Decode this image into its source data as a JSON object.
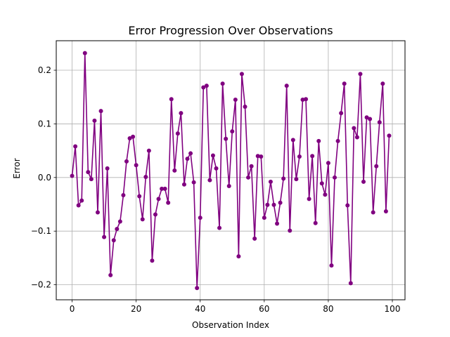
{
  "chart_data": {
    "type": "line",
    "title": "Error Progression Over Observations",
    "xlabel": "Observation Index",
    "ylabel": "Error",
    "xlim": [
      -4.95,
      103.95
    ],
    "ylim": [
      -0.228,
      0.255
    ],
    "x_ticks": [
      0,
      20,
      40,
      60,
      80,
      100
    ],
    "x_tick_labels": [
      "0",
      "20",
      "40",
      "60",
      "80",
      "100"
    ],
    "y_ticks": [
      -0.2,
      -0.1,
      0.0,
      0.1,
      0.2
    ],
    "y_tick_labels": [
      "−0.2",
      "−0.1",
      "0.0",
      "0.1",
      "0.2"
    ],
    "grid": true,
    "legend": "none",
    "series": [
      {
        "color": "#800080",
        "marker": "circle",
        "x": [
          0,
          1,
          2,
          3,
          4,
          5,
          6,
          7,
          8,
          9,
          10,
          11,
          12,
          13,
          14,
          15,
          16,
          17,
          18,
          19,
          20,
          21,
          22,
          23,
          24,
          25,
          26,
          27,
          28,
          29,
          30,
          31,
          32,
          33,
          34,
          35,
          36,
          37,
          38,
          39,
          40,
          41,
          42,
          43,
          44,
          45,
          46,
          47,
          48,
          49,
          50,
          51,
          52,
          53,
          54,
          55,
          56,
          57,
          58,
          59,
          60,
          61,
          62,
          63,
          64,
          65,
          66,
          67,
          68,
          69,
          70,
          71,
          72,
          73,
          74,
          75,
          76,
          77,
          78,
          79,
          80,
          81,
          82,
          83,
          84,
          85,
          86,
          87,
          88,
          89,
          90,
          91,
          92,
          93,
          94,
          95,
          96,
          97,
          98,
          99
        ],
        "values": [
          0.003,
          0.058,
          -0.052,
          -0.043,
          0.232,
          0.01,
          -0.003,
          0.106,
          -0.065,
          0.124,
          -0.111,
          0.017,
          -0.182,
          -0.117,
          -0.096,
          -0.082,
          -0.033,
          0.03,
          0.073,
          0.076,
          0.023,
          -0.035,
          -0.078,
          0.001,
          0.05,
          -0.155,
          -0.069,
          -0.04,
          -0.021,
          -0.021,
          -0.047,
          0.146,
          0.013,
          0.082,
          0.12,
          -0.013,
          0.035,
          0.045,
          -0.009,
          -0.206,
          -0.075,
          0.168,
          0.171,
          -0.005,
          0.041,
          0.017,
          -0.094,
          0.175,
          0.072,
          -0.016,
          0.086,
          0.145,
          -0.147,
          0.193,
          0.132,
          0.0,
          0.021,
          -0.114,
          0.04,
          0.039,
          -0.075,
          -0.051,
          -0.008,
          -0.051,
          -0.086,
          -0.047,
          -0.002,
          0.171,
          -0.099,
          0.07,
          -0.003,
          0.039,
          0.145,
          0.146,
          -0.04,
          0.04,
          -0.085,
          0.068,
          -0.011,
          -0.032,
          0.027,
          -0.164,
          0.0,
          0.068,
          0.12,
          0.175,
          -0.052,
          -0.197,
          0.092,
          0.075,
          0.193,
          -0.008,
          0.112,
          0.109,
          -0.065,
          0.021,
          0.103,
          0.175,
          -0.063,
          0.078
        ]
      }
    ]
  }
}
